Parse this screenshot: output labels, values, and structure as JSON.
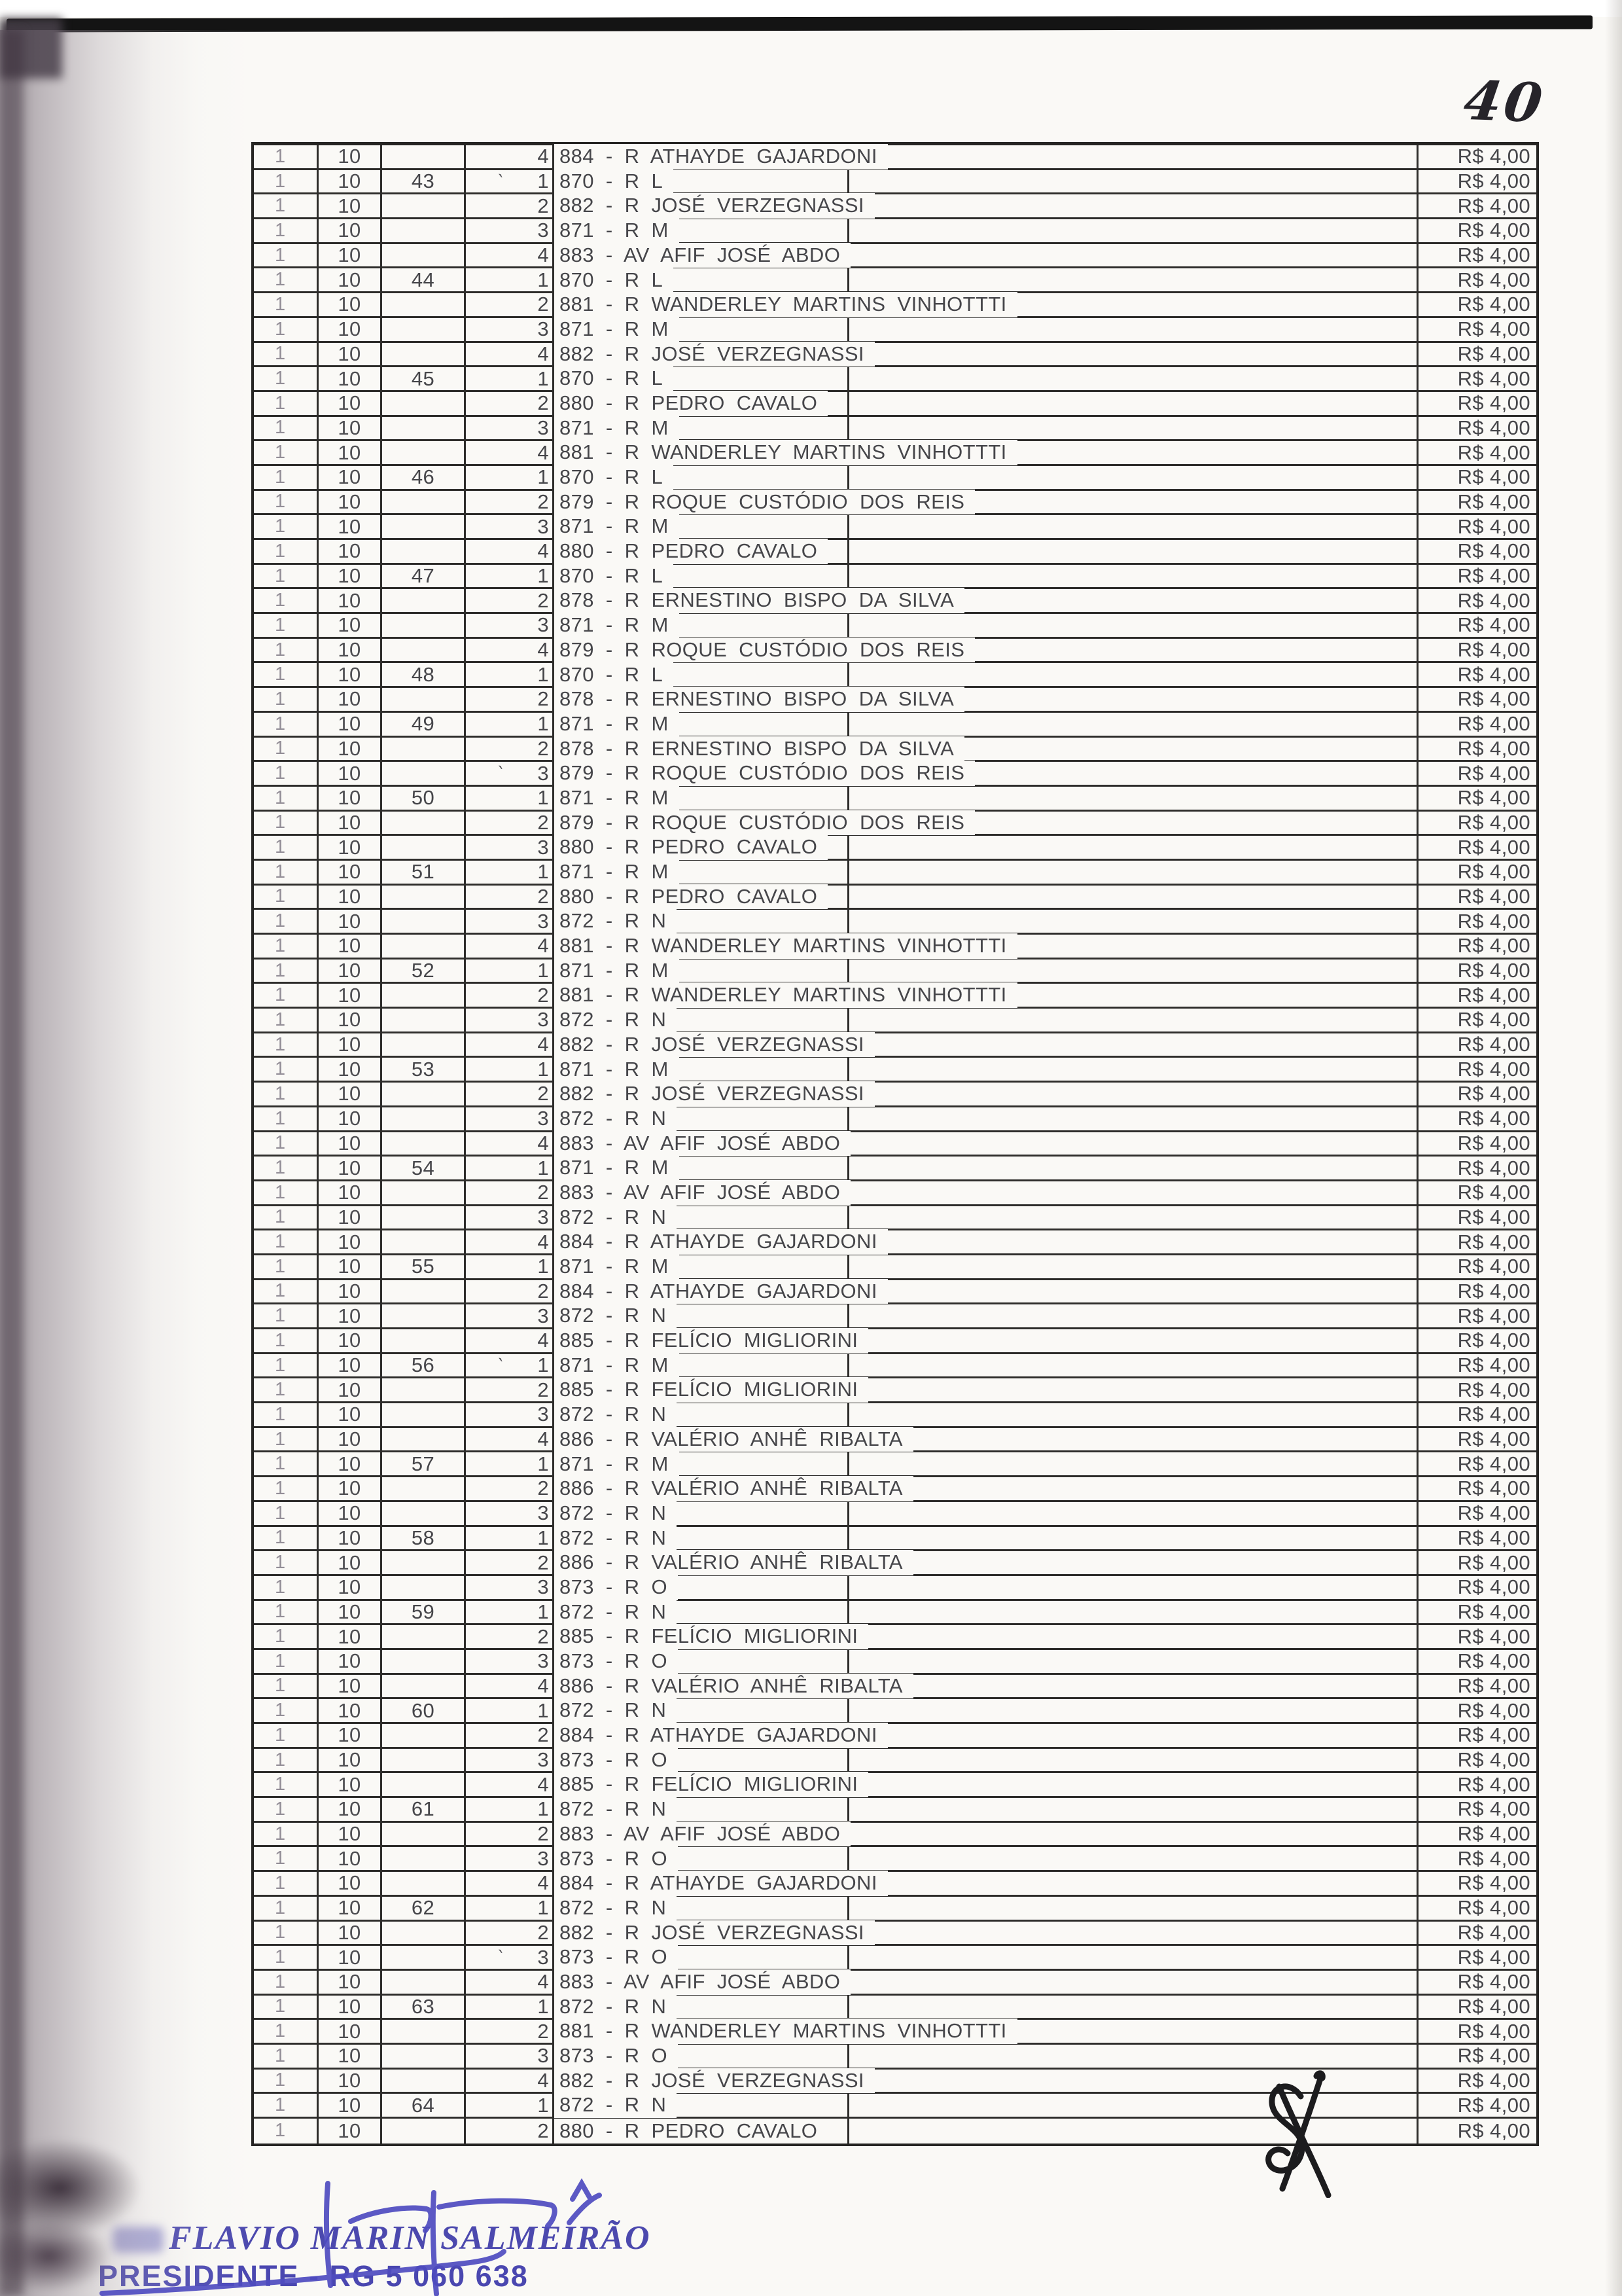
{
  "page": {
    "handwritten_number": "40"
  },
  "table": {
    "zone_value": "1",
    "lot_value": "10",
    "price_value": "R$ 4,00",
    "rows": [
      {
        "group": "",
        "item": "4",
        "code": "884",
        "street": "R ATHAYDE GAJARDONI"
      },
      {
        "group": "43",
        "item": "1",
        "code": "870",
        "street": "R L",
        "tick": true
      },
      {
        "group": "",
        "item": "2",
        "code": "882",
        "street": "R JOSÉ VERZEGNASSI"
      },
      {
        "group": "",
        "item": "3",
        "code": "871",
        "street": "R M"
      },
      {
        "group": "",
        "item": "4",
        "code": "883",
        "street": "AV AFIF JOSÉ ABDO"
      },
      {
        "group": "44",
        "item": "1",
        "code": "870",
        "street": "R L"
      },
      {
        "group": "",
        "item": "2",
        "code": "881",
        "street": "R WANDERLEY MARTINS VINHOTTTI"
      },
      {
        "group": "",
        "item": "3",
        "code": "871",
        "street": "R M"
      },
      {
        "group": "",
        "item": "4",
        "code": "882",
        "street": "R JOSÉ VERZEGNASSI"
      },
      {
        "group": "45",
        "item": "1",
        "code": "870",
        "street": "R L"
      },
      {
        "group": "",
        "item": "2",
        "code": "880",
        "street": "R PEDRO CAVALO"
      },
      {
        "group": "",
        "item": "3",
        "code": "871",
        "street": "R M"
      },
      {
        "group": "",
        "item": "4",
        "code": "881",
        "street": "R WANDERLEY MARTINS VINHOTTTI"
      },
      {
        "group": "46",
        "item": "1",
        "code": "870",
        "street": "R L"
      },
      {
        "group": "",
        "item": "2",
        "code": "879",
        "street": "R ROQUE CUSTÓDIO DOS REIS"
      },
      {
        "group": "",
        "item": "3",
        "code": "871",
        "street": "R M"
      },
      {
        "group": "",
        "item": "4",
        "code": "880",
        "street": "R PEDRO CAVALO"
      },
      {
        "group": "47",
        "item": "1",
        "code": "870",
        "street": "R L"
      },
      {
        "group": "",
        "item": "2",
        "code": "878",
        "street": "R ERNESTINO BISPO DA SILVA"
      },
      {
        "group": "",
        "item": "3",
        "code": "871",
        "street": "R M"
      },
      {
        "group": "",
        "item": "4",
        "code": "879",
        "street": "R ROQUE CUSTÓDIO DOS REIS"
      },
      {
        "group": "48",
        "item": "1",
        "code": "870",
        "street": "R L"
      },
      {
        "group": "",
        "item": "2",
        "code": "878",
        "street": "R ERNESTINO BISPO DA SILVA"
      },
      {
        "group": "49",
        "item": "1",
        "code": "871",
        "street": "R M"
      },
      {
        "group": "",
        "item": "2",
        "code": "878",
        "street": "R ERNESTINO BISPO DA SILVA"
      },
      {
        "group": "",
        "item": "3",
        "code": "879",
        "street": "R ROQUE CUSTÓDIO DOS REIS",
        "tick": true
      },
      {
        "group": "50",
        "item": "1",
        "code": "871",
        "street": "R M"
      },
      {
        "group": "",
        "item": "2",
        "code": "879",
        "street": "R ROQUE CUSTÓDIO DOS REIS"
      },
      {
        "group": "",
        "item": "3",
        "code": "880",
        "street": "R PEDRO CAVALO"
      },
      {
        "group": "51",
        "item": "1",
        "code": "871",
        "street": "R M"
      },
      {
        "group": "",
        "item": "2",
        "code": "880",
        "street": "R PEDRO CAVALO"
      },
      {
        "group": "",
        "item": "3",
        "code": "872",
        "street": "R N"
      },
      {
        "group": "",
        "item": "4",
        "code": "881",
        "street": "R WANDERLEY MARTINS VINHOTTTI"
      },
      {
        "group": "52",
        "item": "1",
        "code": "871",
        "street": "R M"
      },
      {
        "group": "",
        "item": "2",
        "code": "881",
        "street": "R WANDERLEY MARTINS VINHOTTTI"
      },
      {
        "group": "",
        "item": "3",
        "code": "872",
        "street": "R N"
      },
      {
        "group": "",
        "item": "4",
        "code": "882",
        "street": "R JOSÉ VERZEGNASSI"
      },
      {
        "group": "53",
        "item": "1",
        "code": "871",
        "street": "R M"
      },
      {
        "group": "",
        "item": "2",
        "code": "882",
        "street": "R JOSÉ VERZEGNASSI"
      },
      {
        "group": "",
        "item": "3",
        "code": "872",
        "street": "R N"
      },
      {
        "group": "",
        "item": "4",
        "code": "883",
        "street": "AV AFIF JOSÉ ABDO"
      },
      {
        "group": "54",
        "item": "1",
        "code": "871",
        "street": "R M"
      },
      {
        "group": "",
        "item": "2",
        "code": "883",
        "street": "AV AFIF JOSÉ ABDO"
      },
      {
        "group": "",
        "item": "3",
        "code": "872",
        "street": "R N"
      },
      {
        "group": "",
        "item": "4",
        "code": "884",
        "street": "R ATHAYDE GAJARDONI"
      },
      {
        "group": "55",
        "item": "1",
        "code": "871",
        "street": "R M"
      },
      {
        "group": "",
        "item": "2",
        "code": "884",
        "street": "R ATHAYDE GAJARDONI"
      },
      {
        "group": "",
        "item": "3",
        "code": "872",
        "street": "R N"
      },
      {
        "group": "",
        "item": "4",
        "code": "885",
        "street": "R FELÍCIO MIGLIORINI"
      },
      {
        "group": "56",
        "item": "1",
        "code": "871",
        "street": "R M",
        "tick": true
      },
      {
        "group": "",
        "item": "2",
        "code": "885",
        "street": "R FELÍCIO MIGLIORINI"
      },
      {
        "group": "",
        "item": "3",
        "code": "872",
        "street": "R N"
      },
      {
        "group": "",
        "item": "4",
        "code": "886",
        "street": "R VALÉRIO ANHÊ RIBALTA"
      },
      {
        "group": "57",
        "item": "1",
        "code": "871",
        "street": "R M"
      },
      {
        "group": "",
        "item": "2",
        "code": "886",
        "street": "R VALÉRIO ANHÊ RIBALTA"
      },
      {
        "group": "",
        "item": "3",
        "code": "872",
        "street": "R N"
      },
      {
        "group": "58",
        "item": "1",
        "code": "872",
        "street": "R N"
      },
      {
        "group": "",
        "item": "2",
        "code": "886",
        "street": "R VALÉRIO ANHÊ RIBALTA"
      },
      {
        "group": "",
        "item": "3",
        "code": "873",
        "street": "R O"
      },
      {
        "group": "59",
        "item": "1",
        "code": "872",
        "street": "R N"
      },
      {
        "group": "",
        "item": "2",
        "code": "885",
        "street": "R FELÍCIO MIGLIORINI"
      },
      {
        "group": "",
        "item": "3",
        "code": "873",
        "street": "R O"
      },
      {
        "group": "",
        "item": "4",
        "code": "886",
        "street": "R VALÉRIO ANHÊ RIBALTA"
      },
      {
        "group": "60",
        "item": "1",
        "code": "872",
        "street": "R N"
      },
      {
        "group": "",
        "item": "2",
        "code": "884",
        "street": "R ATHAYDE GAJARDONI"
      },
      {
        "group": "",
        "item": "3",
        "code": "873",
        "street": "R O"
      },
      {
        "group": "",
        "item": "4",
        "code": "885",
        "street": "R FELÍCIO MIGLIORINI"
      },
      {
        "group": "61",
        "item": "1",
        "code": "872",
        "street": "R N"
      },
      {
        "group": "",
        "item": "2",
        "code": "883",
        "street": "AV AFIF JOSÉ ABDO"
      },
      {
        "group": "",
        "item": "3",
        "code": "873",
        "street": "R O"
      },
      {
        "group": "",
        "item": "4",
        "code": "884",
        "street": "R ATHAYDE GAJARDONI"
      },
      {
        "group": "62",
        "item": "1",
        "code": "872",
        "street": "R N"
      },
      {
        "group": "",
        "item": "2",
        "code": "882",
        "street": "R JOSÉ VERZEGNASSI"
      },
      {
        "group": "",
        "item": "3",
        "code": "873",
        "street": "R O",
        "tick": true
      },
      {
        "group": "",
        "item": "4",
        "code": "883",
        "street": "AV AFIF JOSÉ ABDO"
      },
      {
        "group": "63",
        "item": "1",
        "code": "872",
        "street": "R N"
      },
      {
        "group": "",
        "item": "2",
        "code": "881",
        "street": "R WANDERLEY MARTINS VINHOTTTI"
      },
      {
        "group": "",
        "item": "3",
        "code": "873",
        "street": "R O"
      },
      {
        "group": "",
        "item": "4",
        "code": "882",
        "street": "R JOSÉ VERZEGNASSI"
      },
      {
        "group": "64",
        "item": "1",
        "code": "872",
        "street": "R N"
      },
      {
        "group": "",
        "item": "2",
        "code": "880",
        "street": "R PEDRO CAVALO"
      }
    ]
  },
  "stamp": {
    "line1": "FLAVIO MARIN SALMEIRÃO",
    "line2": "PRESIDENTE - RG 5 060 638"
  },
  "icons": {
    "signature_monogram": "handwritten-monogram",
    "signature_flourish": "handwritten-flourish"
  },
  "colors": {
    "stamp_blue": "#4c49ae",
    "signature_blue": "#4f4cc0",
    "ink_black": "#1c1c1e",
    "table_line": "#2e2d2b",
    "page_bg": "#faf9f6",
    "scan_bar": "#141414"
  }
}
